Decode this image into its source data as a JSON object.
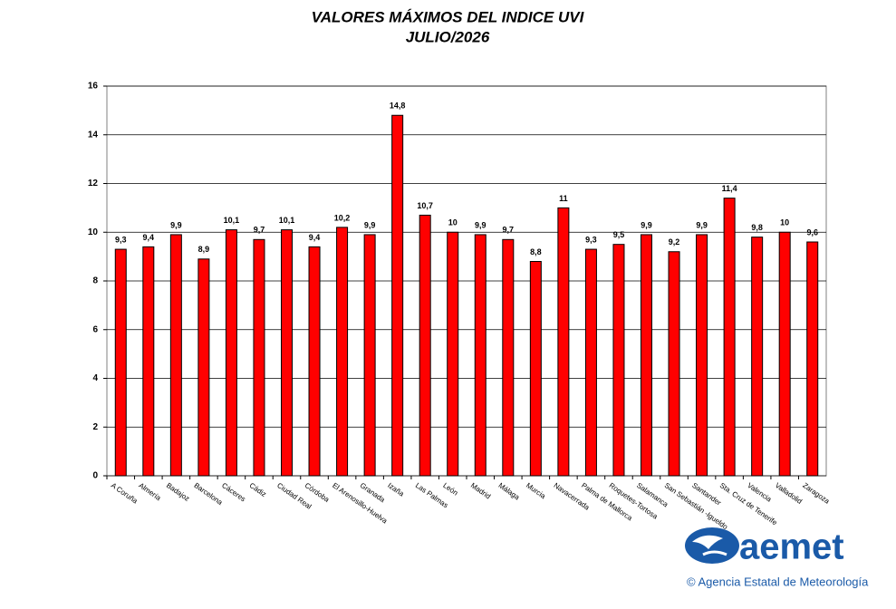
{
  "chart_data": {
    "type": "bar",
    "title": "VALORES MÁXIMOS DEL INDICE UVI",
    "subtitle": "JULIO/2026",
    "categories": [
      "A Coruña",
      "Almería",
      "Badajoz",
      "Barcelona",
      "Cáceres",
      "Cádiz",
      "Ciudad Real",
      "Córdoba",
      "El Arenosillo-Huelva",
      "Granada",
      "Izaña",
      "Las Palmas",
      "León",
      "Madrid",
      "Málaga",
      "Murcia",
      "Navacerrada",
      "Palma de Mallorca",
      "Roquetes-Tortosa",
      "Salamanca",
      "San Sebastián -Igueldo",
      "Santander",
      "Sta. Cruz de Tenerife",
      "Valencia",
      "Valladolid",
      "Zaragoza"
    ],
    "values": [
      9.3,
      9.4,
      9.9,
      8.9,
      10.1,
      9.7,
      10.1,
      9.4,
      10.2,
      9.9,
      14.8,
      10.7,
      10,
      9.9,
      9.7,
      8.8,
      11,
      9.3,
      9.5,
      9.9,
      9.2,
      9.9,
      11.4,
      9.8,
      10,
      9.6
    ],
    "value_labels": [
      "9,3",
      "9,4",
      "9,9",
      "8,9",
      "10,1",
      "9,7",
      "10,1",
      "9,4",
      "10,2",
      "9,9",
      "14,8",
      "10,7",
      "10",
      "9,9",
      "9,7",
      "8,8",
      "11",
      "9,3",
      "9,5",
      "9,9",
      "9,2",
      "9,9",
      "11,4",
      "9,8",
      "10",
      "9,6"
    ],
    "color": "#ff0000",
    "ylim": [
      0,
      16
    ],
    "yticks": [
      0,
      2,
      4,
      6,
      8,
      10,
      12,
      14,
      16
    ],
    "grid": true
  },
  "logo": {
    "name": "aemet",
    "caption": "© Agencia Estatal de Meteorología"
  }
}
